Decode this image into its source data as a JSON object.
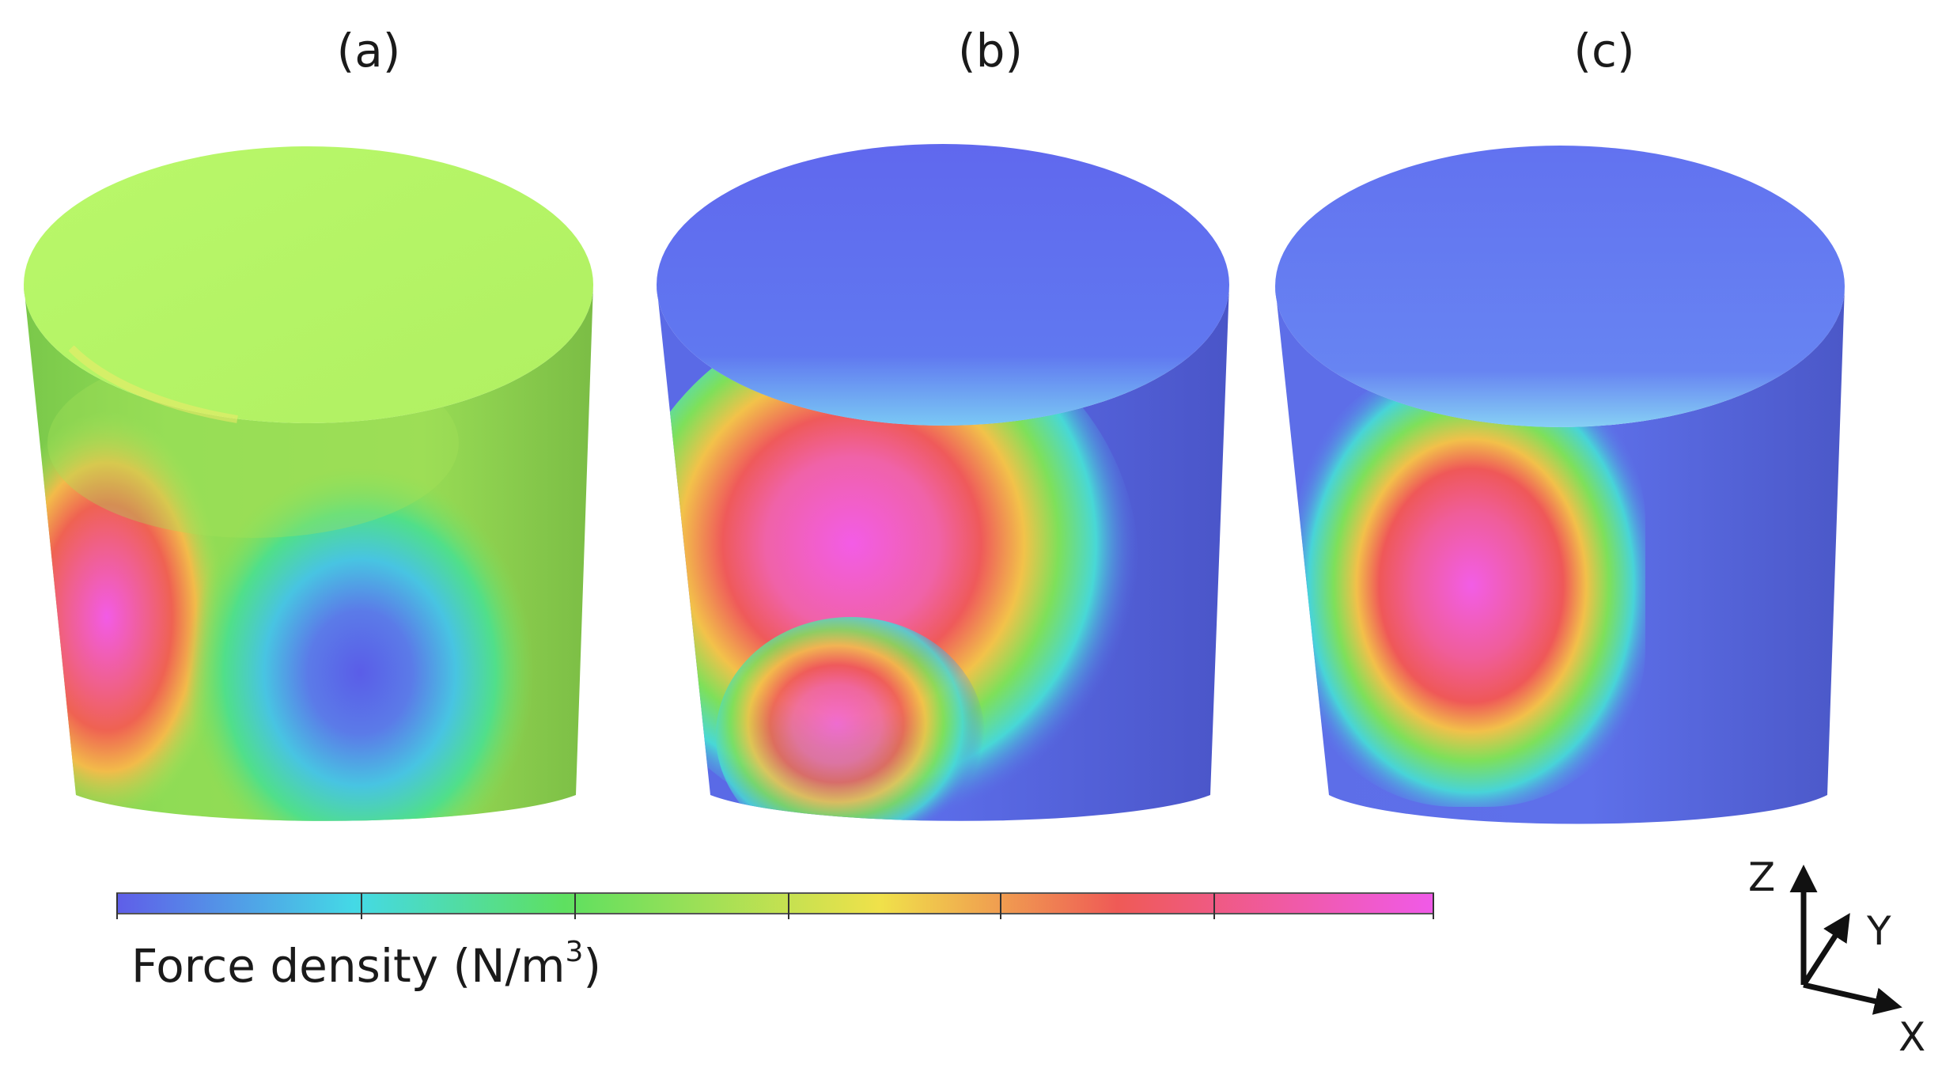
{
  "panels": [
    {
      "label": "(a)"
    },
    {
      "label": "(b)"
    },
    {
      "label": "(c)"
    }
  ],
  "colorbar": {
    "title_text": "Force density (N/m",
    "title_exponent": "3",
    "title_close": ")",
    "segments": 6,
    "colors": [
      "#5f5ee8",
      "#44d9e6",
      "#5ee060",
      "#f0e14a",
      "#ef5a56",
      "#f05ae8"
    ]
  },
  "axes": {
    "z": "Z",
    "y": "Y",
    "x": "X"
  },
  "colors": {
    "text": "#1a1a1a",
    "axis": "#111111"
  }
}
